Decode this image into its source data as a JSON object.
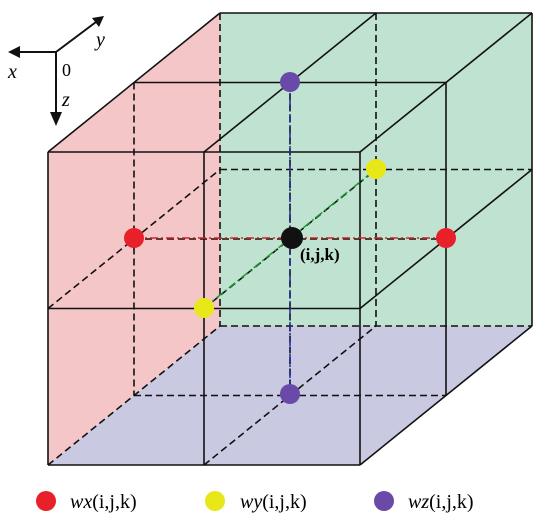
{
  "axes": {
    "origin": "0",
    "x": "x",
    "y": "y",
    "z": "z"
  },
  "center_label": "(i,j,k)",
  "legend": [
    {
      "symbol": "wx",
      "args": "(i,j,k)"
    },
    {
      "symbol": "wy",
      "args": "(i,j,k)"
    },
    {
      "symbol": "wz",
      "args": "(i,j,k)"
    }
  ]
}
